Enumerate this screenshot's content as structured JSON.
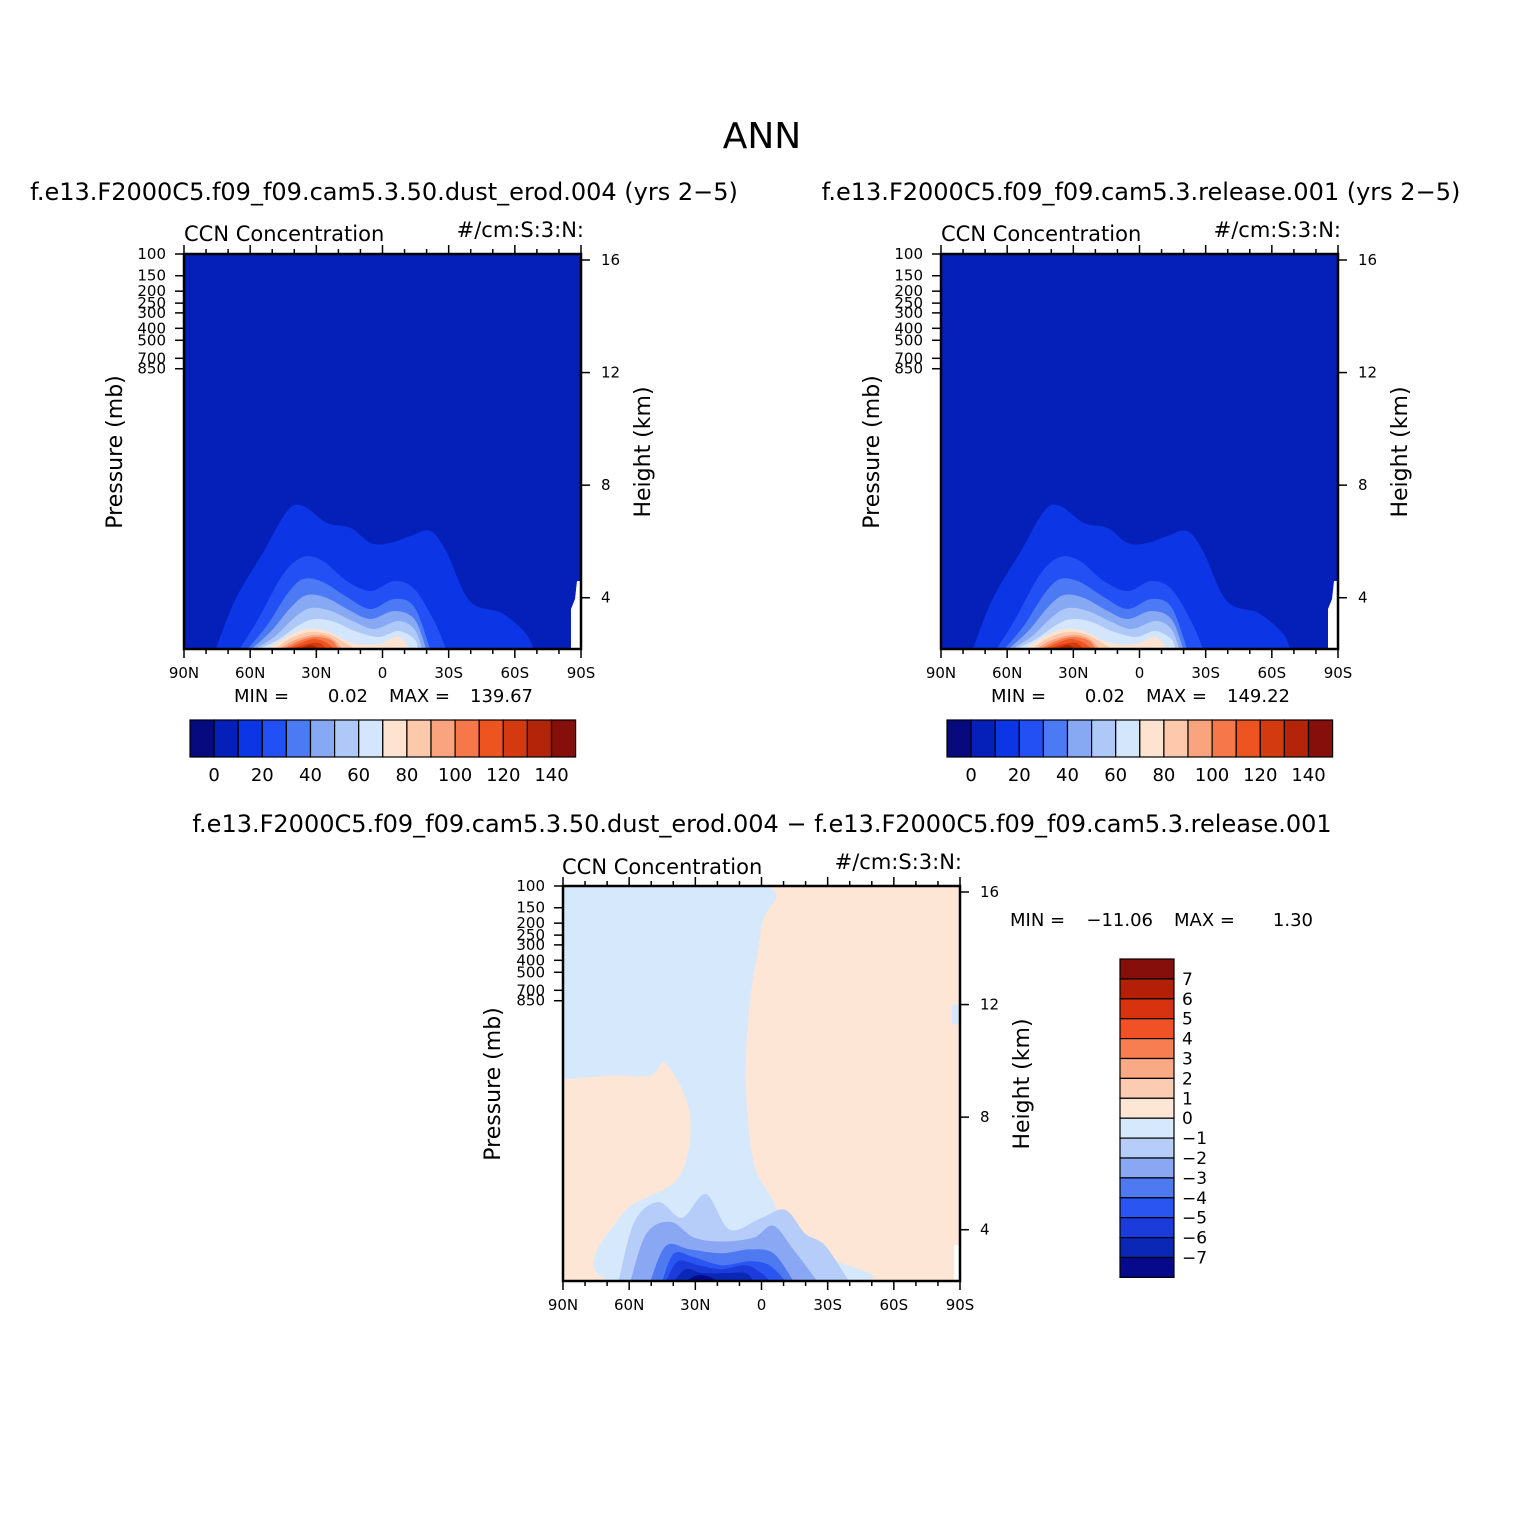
{
  "page_title": "ANN",
  "colors": {
    "positive": [
      "#FDE3D0",
      "#FDC9AC",
      "#FAA47F",
      "#F6784A",
      "#EE5420",
      "#D43A10",
      "#B32408",
      "#860E0B"
    ],
    "negative": [
      "#D4E6FB",
      "#B4CEF7",
      "#87A9F3",
      "#4F7BF2",
      "#2A55F0",
      "#1E3FE0",
      "#0A26B2",
      "#07097F"
    ],
    "diff_positive": [
      "#FDE6D5",
      "#FBCCB1",
      "#F9AA84",
      "#F77E50",
      "#F05225",
      "#D8320E",
      "#B41F08",
      "#860E0B"
    ],
    "diff_negative": [
      "#D6E8FC",
      "#B5CDF8",
      "#89A7F2",
      "#4E79F0",
      "#2A55F0",
      "#1B3CDB",
      "#0A28B5",
      "#06098A"
    ]
  },
  "chart_data": [
    {
      "type": "heatmap",
      "panel_title": "f.e13.F2000C5.f09_f09.cam5.3.50.dust_erod.004 (yrs 2−5)",
      "left_label": "CCN Concentration",
      "right_label": "#/cm:S:3:N:",
      "ylabel": "Pressure (mb)",
      "y2label": "Height (km)",
      "x_ticks": [
        "90N",
        "60N",
        "30N",
        "0",
        "30S",
        "60S",
        "90S"
      ],
      "y_ticks": [
        "100",
        "150",
        "200",
        "250",
        "300",
        "400",
        "500",
        "700",
        "850"
      ],
      "y2_ticks": [
        "16",
        "12",
        "8",
        "4"
      ],
      "stats": {
        "min_label": "MIN =",
        "min": "0.02",
        "max_label": "MAX =",
        "max": "139.67"
      },
      "colorbar_labels": [
        "0",
        "20",
        "40",
        "60",
        "80",
        "100",
        "120",
        "140"
      ],
      "colorbar_colors": [
        "#07097F",
        "#0420B8",
        "#0C35E6",
        "#2250F4",
        "#4C79F4",
        "#87A9F3",
        "#AEC8F8",
        "#D4E6FB",
        "#FDE3D0",
        "#FDC9AC",
        "#FAA47F",
        "#F6784A",
        "#EE5420",
        "#D43A10",
        "#B32408",
        "#860E0B"
      ]
    },
    {
      "type": "heatmap",
      "panel_title": "f.e13.F2000C5.f09_f09.cam5.3.release.001 (yrs 2−5)",
      "left_label": "CCN Concentration",
      "right_label": "#/cm:S:3:N:",
      "ylabel": "Pressure (mb)",
      "y2label": "Height (km)",
      "x_ticks": [
        "90N",
        "60N",
        "30N",
        "0",
        "30S",
        "60S",
        "90S"
      ],
      "y_ticks": [
        "100",
        "150",
        "200",
        "250",
        "300",
        "400",
        "500",
        "700",
        "850"
      ],
      "y2_ticks": [
        "16",
        "12",
        "8",
        "4"
      ],
      "stats": {
        "min_label": "MIN =",
        "min": "0.02",
        "max_label": "MAX =",
        "max": "149.22"
      },
      "colorbar_labels": [
        "0",
        "20",
        "40",
        "60",
        "80",
        "100",
        "120",
        "140"
      ],
      "colorbar_colors": [
        "#07097F",
        "#0420B8",
        "#0C35E6",
        "#2250F4",
        "#4C79F4",
        "#87A9F3",
        "#AEC8F8",
        "#D4E6FB",
        "#FDE3D0",
        "#FDC9AC",
        "#FAA47F",
        "#F6784A",
        "#EE5420",
        "#D43A10",
        "#B32408",
        "#860E0B"
      ]
    },
    {
      "type": "heatmap",
      "panel_title": "f.e13.F2000C5.f09_f09.cam5.3.50.dust_erod.004 − f.e13.F2000C5.f09_f09.cam5.3.release.001",
      "left_label": "CCN Concentration",
      "right_label": "#/cm:S:3:N:",
      "ylabel": "Pressure (mb)",
      "y2label": "Height (km)",
      "x_ticks": [
        "90N",
        "60N",
        "30N",
        "0",
        "30S",
        "60S",
        "90S"
      ],
      "y_ticks": [
        "100",
        "150",
        "200",
        "250",
        "300",
        "400",
        "500",
        "700",
        "850"
      ],
      "y2_ticks": [
        "16",
        "12",
        "8",
        "4"
      ],
      "stats": {
        "min_label": "MIN =",
        "min": "−11.06",
        "max_label": "MAX =",
        "max": "1.30"
      },
      "colorbar_labels": [
        "7",
        "6",
        "5",
        "4",
        "3",
        "2",
        "1",
        "0",
        "−1",
        "−2",
        "−3",
        "−4",
        "−5",
        "−6",
        "−7"
      ],
      "colorbar_colors": [
        "#860E0B",
        "#B41F08",
        "#D8320E",
        "#F05225",
        "#F77E50",
        "#F9AA84",
        "#FBCCB1",
        "#FDE6D5",
        "#D6E8FC",
        "#B5CDF8",
        "#89A7F2",
        "#4E79F0",
        "#2A55F0",
        "#1B3CDB",
        "#0A28B5",
        "#06098A"
      ]
    }
  ]
}
